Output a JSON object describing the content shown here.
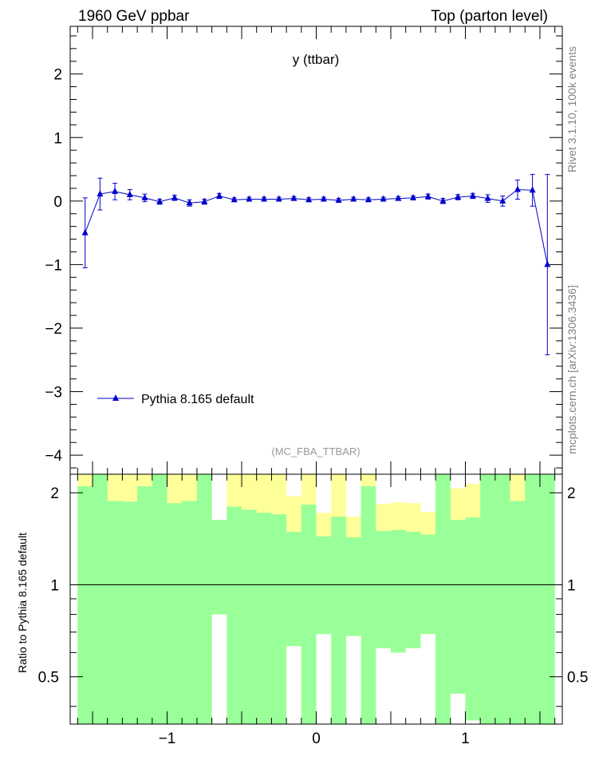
{
  "header": {
    "left": "1960 GeV ppbar",
    "right": "Top (parton level)"
  },
  "side_labels": {
    "rivet": "Rivet 3.1.10,  100k events",
    "mcplots": "mcplots.cern.ch [arXiv:1306.3436]"
  },
  "chart_data": [
    {
      "type": "scatter",
      "title": "y (ttbar)",
      "analysis_label": "(MC_FBA_TTBAR)",
      "xlabel": "",
      "ylabel": "",
      "xlim": [
        -1.65,
        1.65
      ],
      "ylim": [
        -4.3,
        2.75
      ],
      "yticks": [
        -4,
        -3,
        -2,
        -1,
        0,
        1,
        2
      ],
      "ytick_labels": [
        "−4",
        "−3",
        "−2",
        "−1",
        "0",
        "1",
        "2"
      ],
      "legend": {
        "entries": [
          "Pythia 8.165 default"
        ],
        "placement": "bottom-left"
      },
      "series": [
        {
          "name": "Pythia 8.165 default",
          "color": "#0000cc",
          "x": [
            -1.55,
            -1.45,
            -1.35,
            -1.25,
            -1.15,
            -1.05,
            -0.95,
            -0.85,
            -0.75,
            -0.65,
            -0.55,
            -0.45,
            -0.35,
            -0.25,
            -0.15,
            -0.05,
            0.05,
            0.15,
            0.25,
            0.35,
            0.45,
            0.55,
            0.65,
            0.75,
            0.85,
            0.95,
            1.05,
            1.15,
            1.25,
            1.35,
            1.45,
            1.55
          ],
          "y": [
            -0.5,
            0.11,
            0.15,
            0.1,
            0.05,
            -0.01,
            0.05,
            -0.03,
            -0.01,
            0.08,
            0.02,
            0.03,
            0.03,
            0.03,
            0.04,
            0.02,
            0.03,
            0.01,
            0.03,
            0.02,
            0.03,
            0.04,
            0.05,
            0.07,
            0.0,
            0.06,
            0.08,
            0.04,
            0.0,
            0.18,
            0.17,
            -1.0
          ],
          "yerr": [
            0.55,
            0.25,
            0.13,
            0.08,
            0.06,
            0.04,
            0.04,
            0.05,
            0.04,
            0.04,
            0.03,
            0.03,
            0.03,
            0.03,
            0.03,
            0.03,
            0.03,
            0.03,
            0.03,
            0.03,
            0.03,
            0.03,
            0.03,
            0.04,
            0.04,
            0.04,
            0.04,
            0.06,
            0.08,
            0.15,
            0.25,
            1.42
          ]
        }
      ]
    },
    {
      "type": "bar",
      "title": "",
      "xlabel": "",
      "ylabel": "Ratio to Pythia 8.165 default",
      "xlim": [
        -1.65,
        1.65
      ],
      "ylim": [
        0.35,
        2.3
      ],
      "xticks": [
        -1,
        0,
        1
      ],
      "xtick_labels": [
        "−1",
        "0",
        "1"
      ],
      "yticks": [
        0.5,
        1,
        2
      ],
      "ytick_labels": [
        "0.5",
        "1",
        "2"
      ],
      "reference_line": 1,
      "bins": [
        -1.6,
        -1.5,
        -1.4,
        -1.3,
        -1.2,
        -1.1,
        -1.0,
        -0.9,
        -0.8,
        -0.7,
        -0.6,
        -0.5,
        -0.4,
        -0.3,
        -0.2,
        -0.1,
        0.0,
        0.1,
        0.2,
        0.3,
        0.4,
        0.5,
        0.6,
        0.7,
        0.8,
        0.9,
        1.0,
        1.1,
        1.2,
        1.3,
        1.4,
        1.5,
        1.6
      ],
      "bands": {
        "green": {
          "color": "#99ff99",
          "lower": [
            0.35,
            0.35,
            0.35,
            0.35,
            0.35,
            0.35,
            0.35,
            0.35,
            0.35,
            1.0,
            0.35,
            0.35,
            0.35,
            0.35,
            0.35,
            0.35,
            0.35,
            0.35,
            0.35,
            0.35,
            0.35,
            0.35,
            0.35,
            0.35,
            0.35,
            0.35,
            0.35,
            0.35,
            0.35,
            0.35,
            0.35,
            0.35
          ],
          "upper": [
            2.3,
            2.3,
            2.3,
            2.3,
            2.3,
            2.3,
            2.3,
            2.3,
            2.3,
            1.0,
            2.3,
            2.3,
            2.3,
            2.3,
            2.3,
            2.3,
            2.3,
            2.3,
            2.3,
            2.3,
            2.3,
            2.3,
            2.3,
            2.3,
            2.3,
            2.3,
            2.3,
            2.3,
            2.3,
            2.3,
            2.3,
            2.3
          ]
        },
        "yellow": {
          "color": "#ffff99",
          "lower": [
            0.35,
            0.35,
            0.35,
            0.35,
            0.35,
            0.35,
            0.35,
            0.35,
            0.35,
            0.8,
            0.35,
            0.35,
            0.35,
            0.35,
            0.63,
            0.35,
            0.69,
            0.35,
            0.68,
            0.35,
            0.62,
            0.6,
            0.62,
            0.69,
            0.35,
            0.44,
            0.36,
            0.35,
            0.35,
            0.35,
            0.35,
            0.35
          ],
          "upper": [
            2.3,
            2.3,
            2.3,
            2.3,
            2.3,
            2.3,
            2.3,
            2.3,
            2.3,
            1.63,
            2.3,
            2.3,
            2.3,
            2.3,
            1.95,
            2.3,
            1.72,
            2.3,
            1.67,
            2.3,
            1.84,
            1.86,
            1.85,
            1.73,
            2.3,
            2.07,
            2.14,
            2.3,
            2.3,
            2.3,
            2.3,
            2.3
          ]
        },
        "inner_green": {
          "lower": [
            0.35,
            0.35,
            0.35,
            0.35,
            0.35,
            0.35,
            0.35,
            0.35,
            0.35,
            0.8,
            0.35,
            0.35,
            0.35,
            0.35,
            0.63,
            0.35,
            0.69,
            0.35,
            0.68,
            0.35,
            0.62,
            0.6,
            0.62,
            0.69,
            0.35,
            0.44,
            0.36,
            0.35,
            0.35,
            0.35,
            0.35,
            0.35
          ],
          "upper": [
            2.1,
            2.3,
            1.88,
            1.87,
            2.1,
            2.3,
            1.85,
            1.88,
            2.3,
            1.63,
            1.8,
            1.76,
            1.72,
            1.7,
            1.49,
            1.83,
            1.44,
            1.67,
            1.43,
            2.1,
            1.5,
            1.51,
            1.49,
            1.46,
            2.3,
            1.63,
            1.66,
            2.3,
            2.3,
            1.88,
            2.3,
            2.3
          ]
        }
      }
    }
  ]
}
